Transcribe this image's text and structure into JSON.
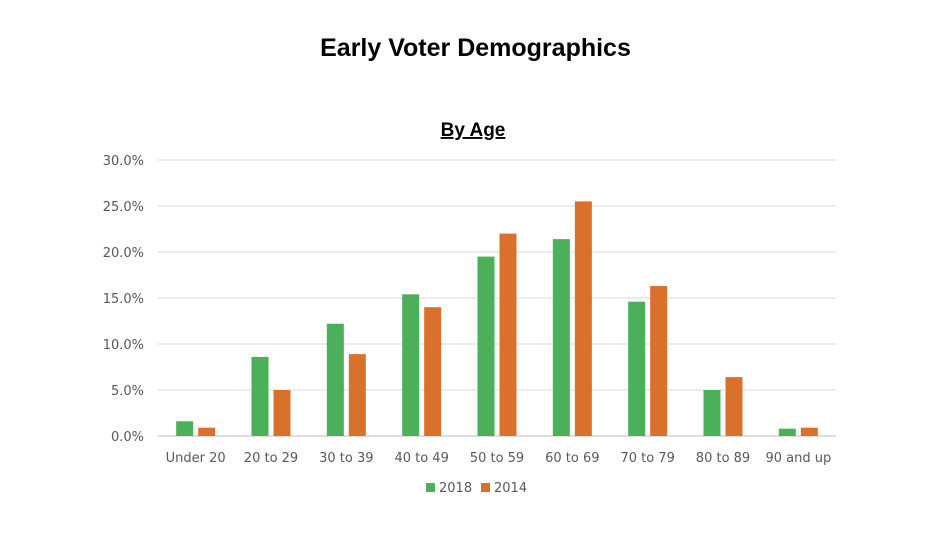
{
  "main_title": "Early Voter Demographics",
  "chart_data": {
    "type": "bar",
    "title": "By Age",
    "categories": [
      "Under 20",
      "20 to 29",
      "30 to 39",
      "40 to 49",
      "50 to 59",
      "60 to 69",
      "70 to 79",
      "80 to 89",
      "90 and up"
    ],
    "series": [
      {
        "name": "2018",
        "color": "#4caf5a",
        "values": [
          1.6,
          8.6,
          12.2,
          15.4,
          19.5,
          21.4,
          14.6,
          5.0,
          0.8
        ]
      },
      {
        "name": "2014",
        "color": "#d9702b",
        "values": [
          0.9,
          5.0,
          8.9,
          14.0,
          22.0,
          25.5,
          16.3,
          6.4,
          0.9
        ]
      }
    ],
    "ylim": [
      0,
      30
    ],
    "yticks": [
      "0.0%",
      "5.0%",
      "10.0%",
      "15.0%",
      "20.0%",
      "25.0%",
      "30.0%"
    ],
    "grid": true,
    "legend_position": "bottom"
  }
}
